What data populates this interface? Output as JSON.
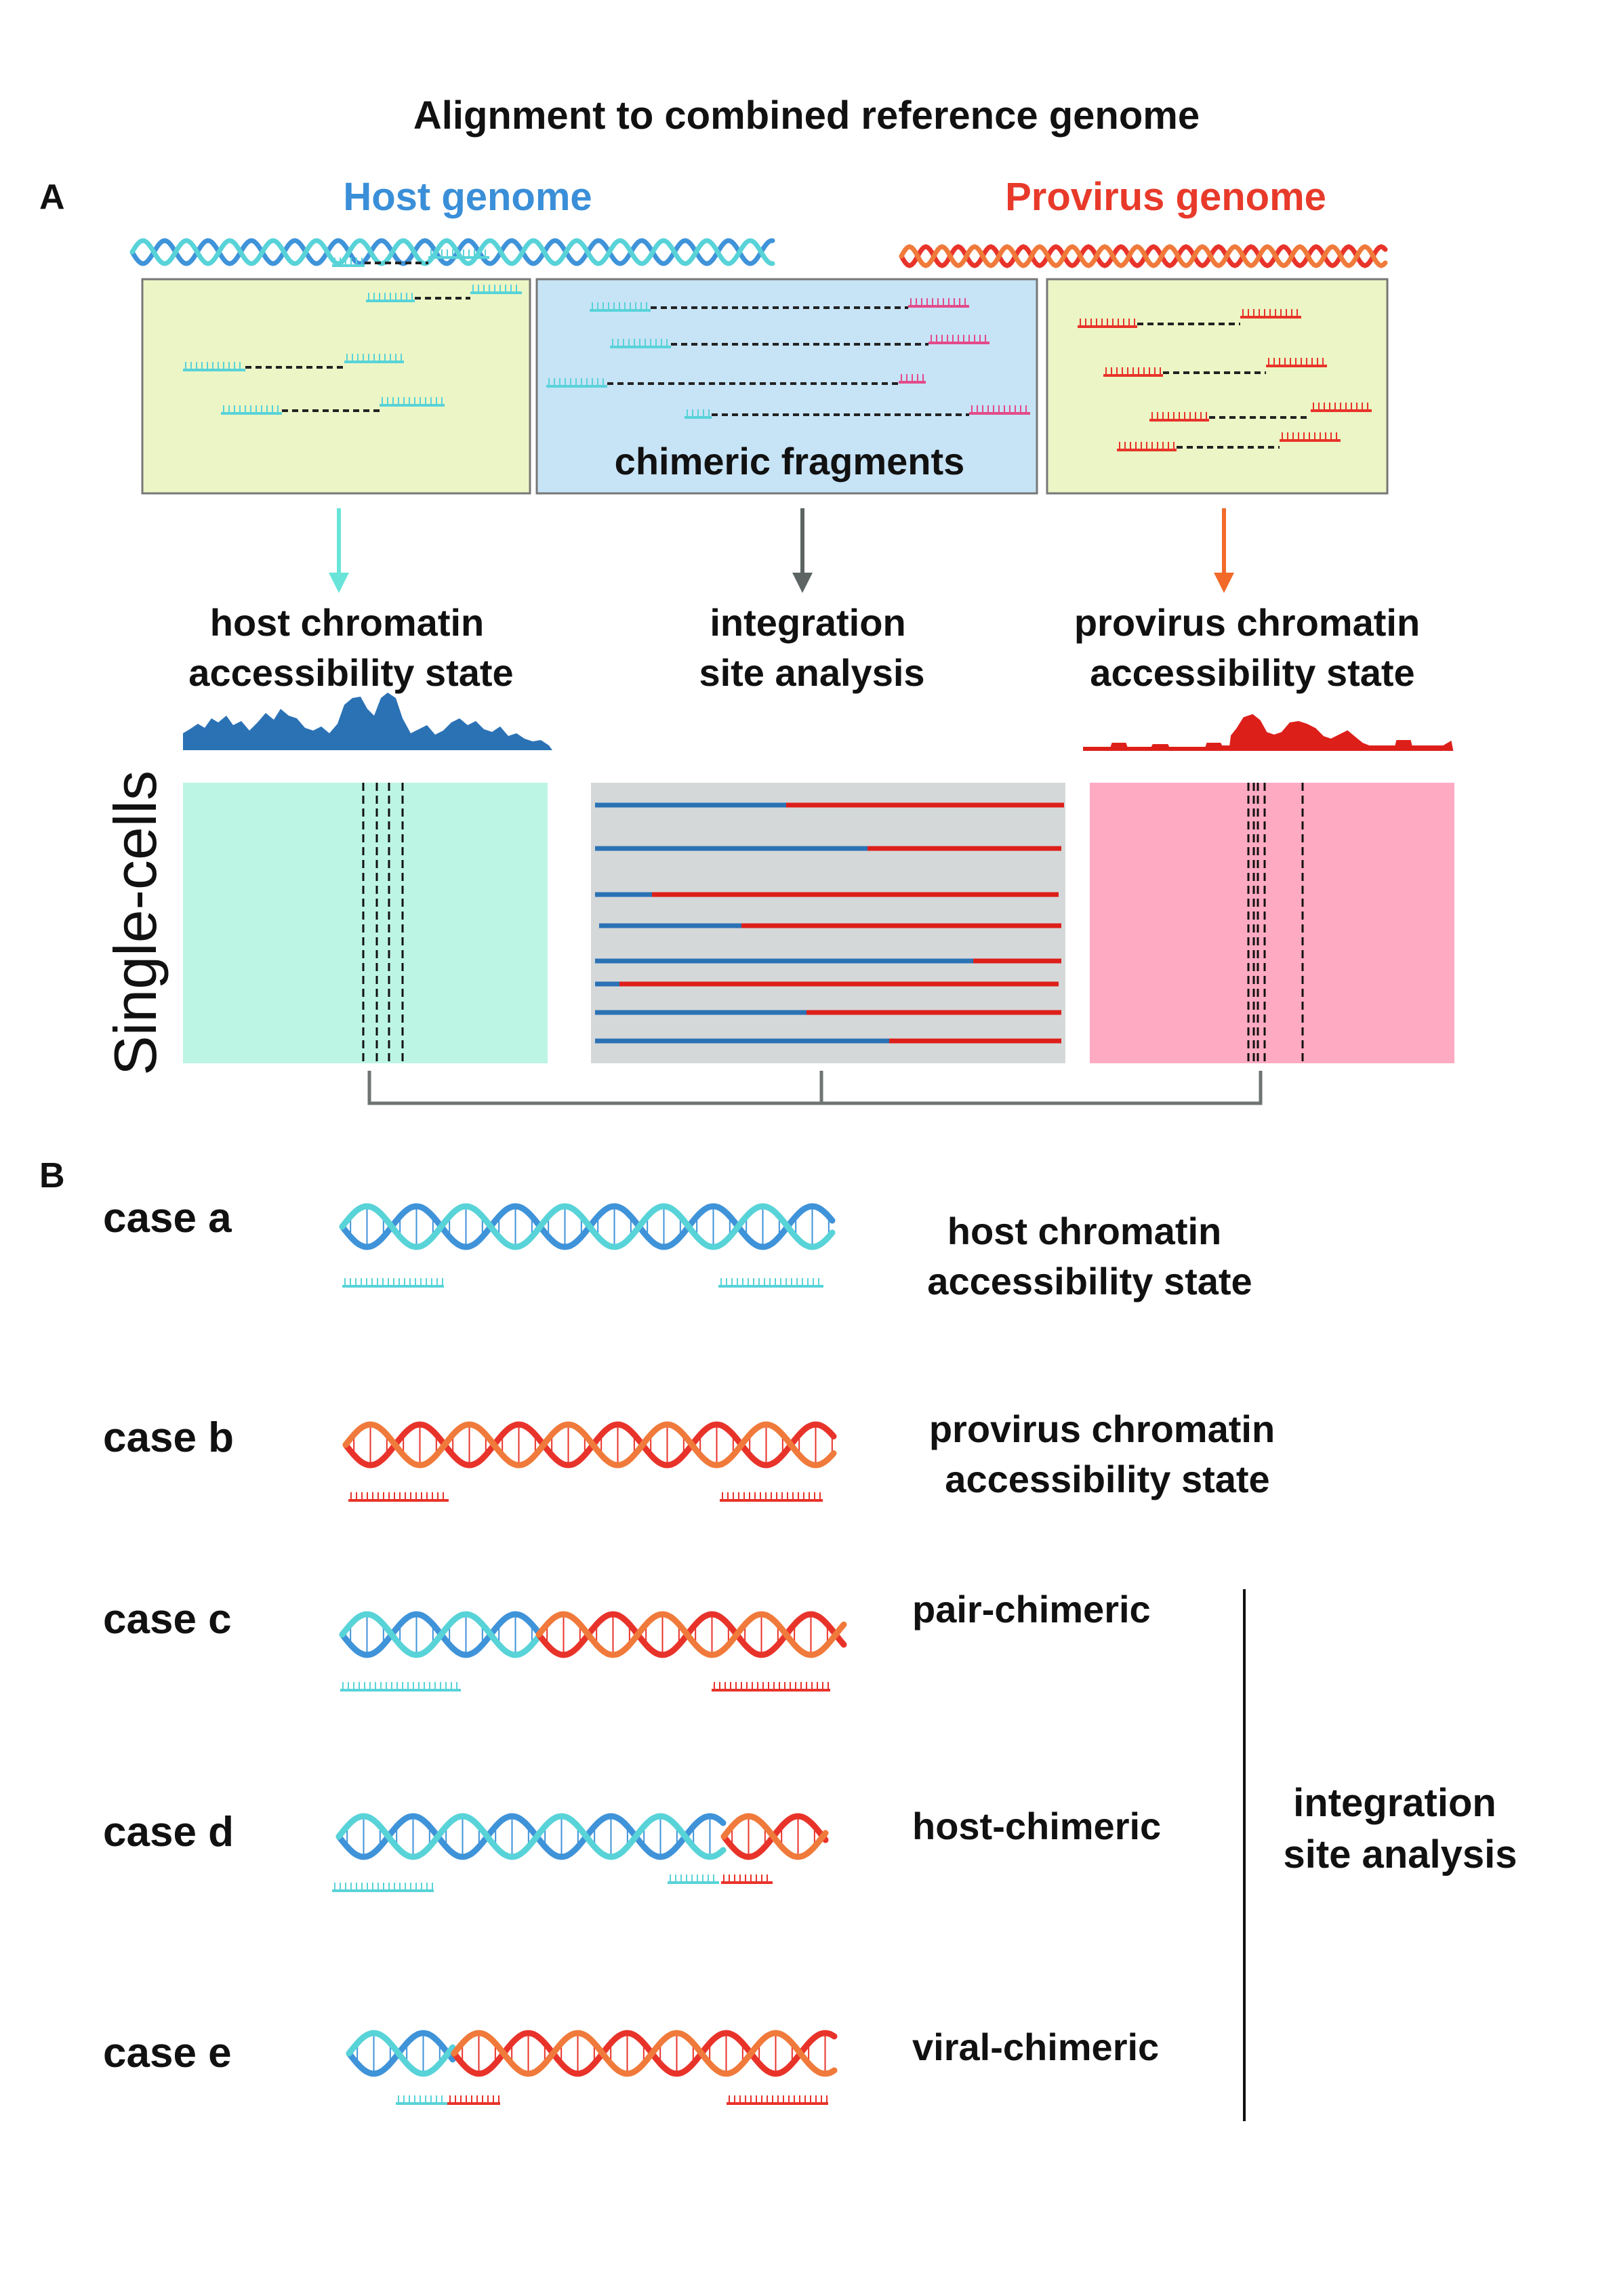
{
  "title": "Alignment to combined reference genome",
  "panel_a": {
    "label": "A",
    "host_genome_title": "Host genome",
    "provirus_genome_title": "Provirus genome",
    "chimeric_box_label": "chimeric fragments",
    "host_state_label": [
      "host chromatin",
      "accessibility state"
    ],
    "integration_label": [
      "integration",
      "site analysis"
    ],
    "provirus_state_label": [
      "provirus chromatin",
      "accessibility state"
    ],
    "single_cells_label": "Single-cells"
  },
  "panel_b": {
    "label": "B",
    "cases": [
      {
        "name": "case a",
        "description": [
          "host chromatin",
          "accessibility state"
        ]
      },
      {
        "name": "case b",
        "description": [
          "provirus chromatin",
          "accessibility state"
        ]
      },
      {
        "name": "case c",
        "description": [
          "pair-chimeric"
        ]
      },
      {
        "name": "case d",
        "description": [
          "host-chimeric"
        ]
      },
      {
        "name": "case e",
        "description": [
          "viral-chimeric"
        ]
      }
    ],
    "group_label": [
      "integration",
      "site analysis"
    ]
  },
  "colors": {
    "host_blue": "#3f93d9",
    "host_cyan": "#58d3d8",
    "virus_red": "#e8332a",
    "virus_orange": "#f07a3b",
    "title_blue": "#3a8fd8",
    "title_red": "#e83a2a",
    "host_track": "#2b72b5",
    "virus_track": "#dd1f1a",
    "host_panel": "#bdf5e4",
    "virus_panel": "#ffaac3",
    "chimeric_panel": "#d5d8d9",
    "box_green": "#ecf5c5",
    "box_blue": "#c7e3f6",
    "arrow_cyan": "#68e4d9",
    "arrow_gray": "#5c6563",
    "arrow_orange": "#f26a2a"
  }
}
